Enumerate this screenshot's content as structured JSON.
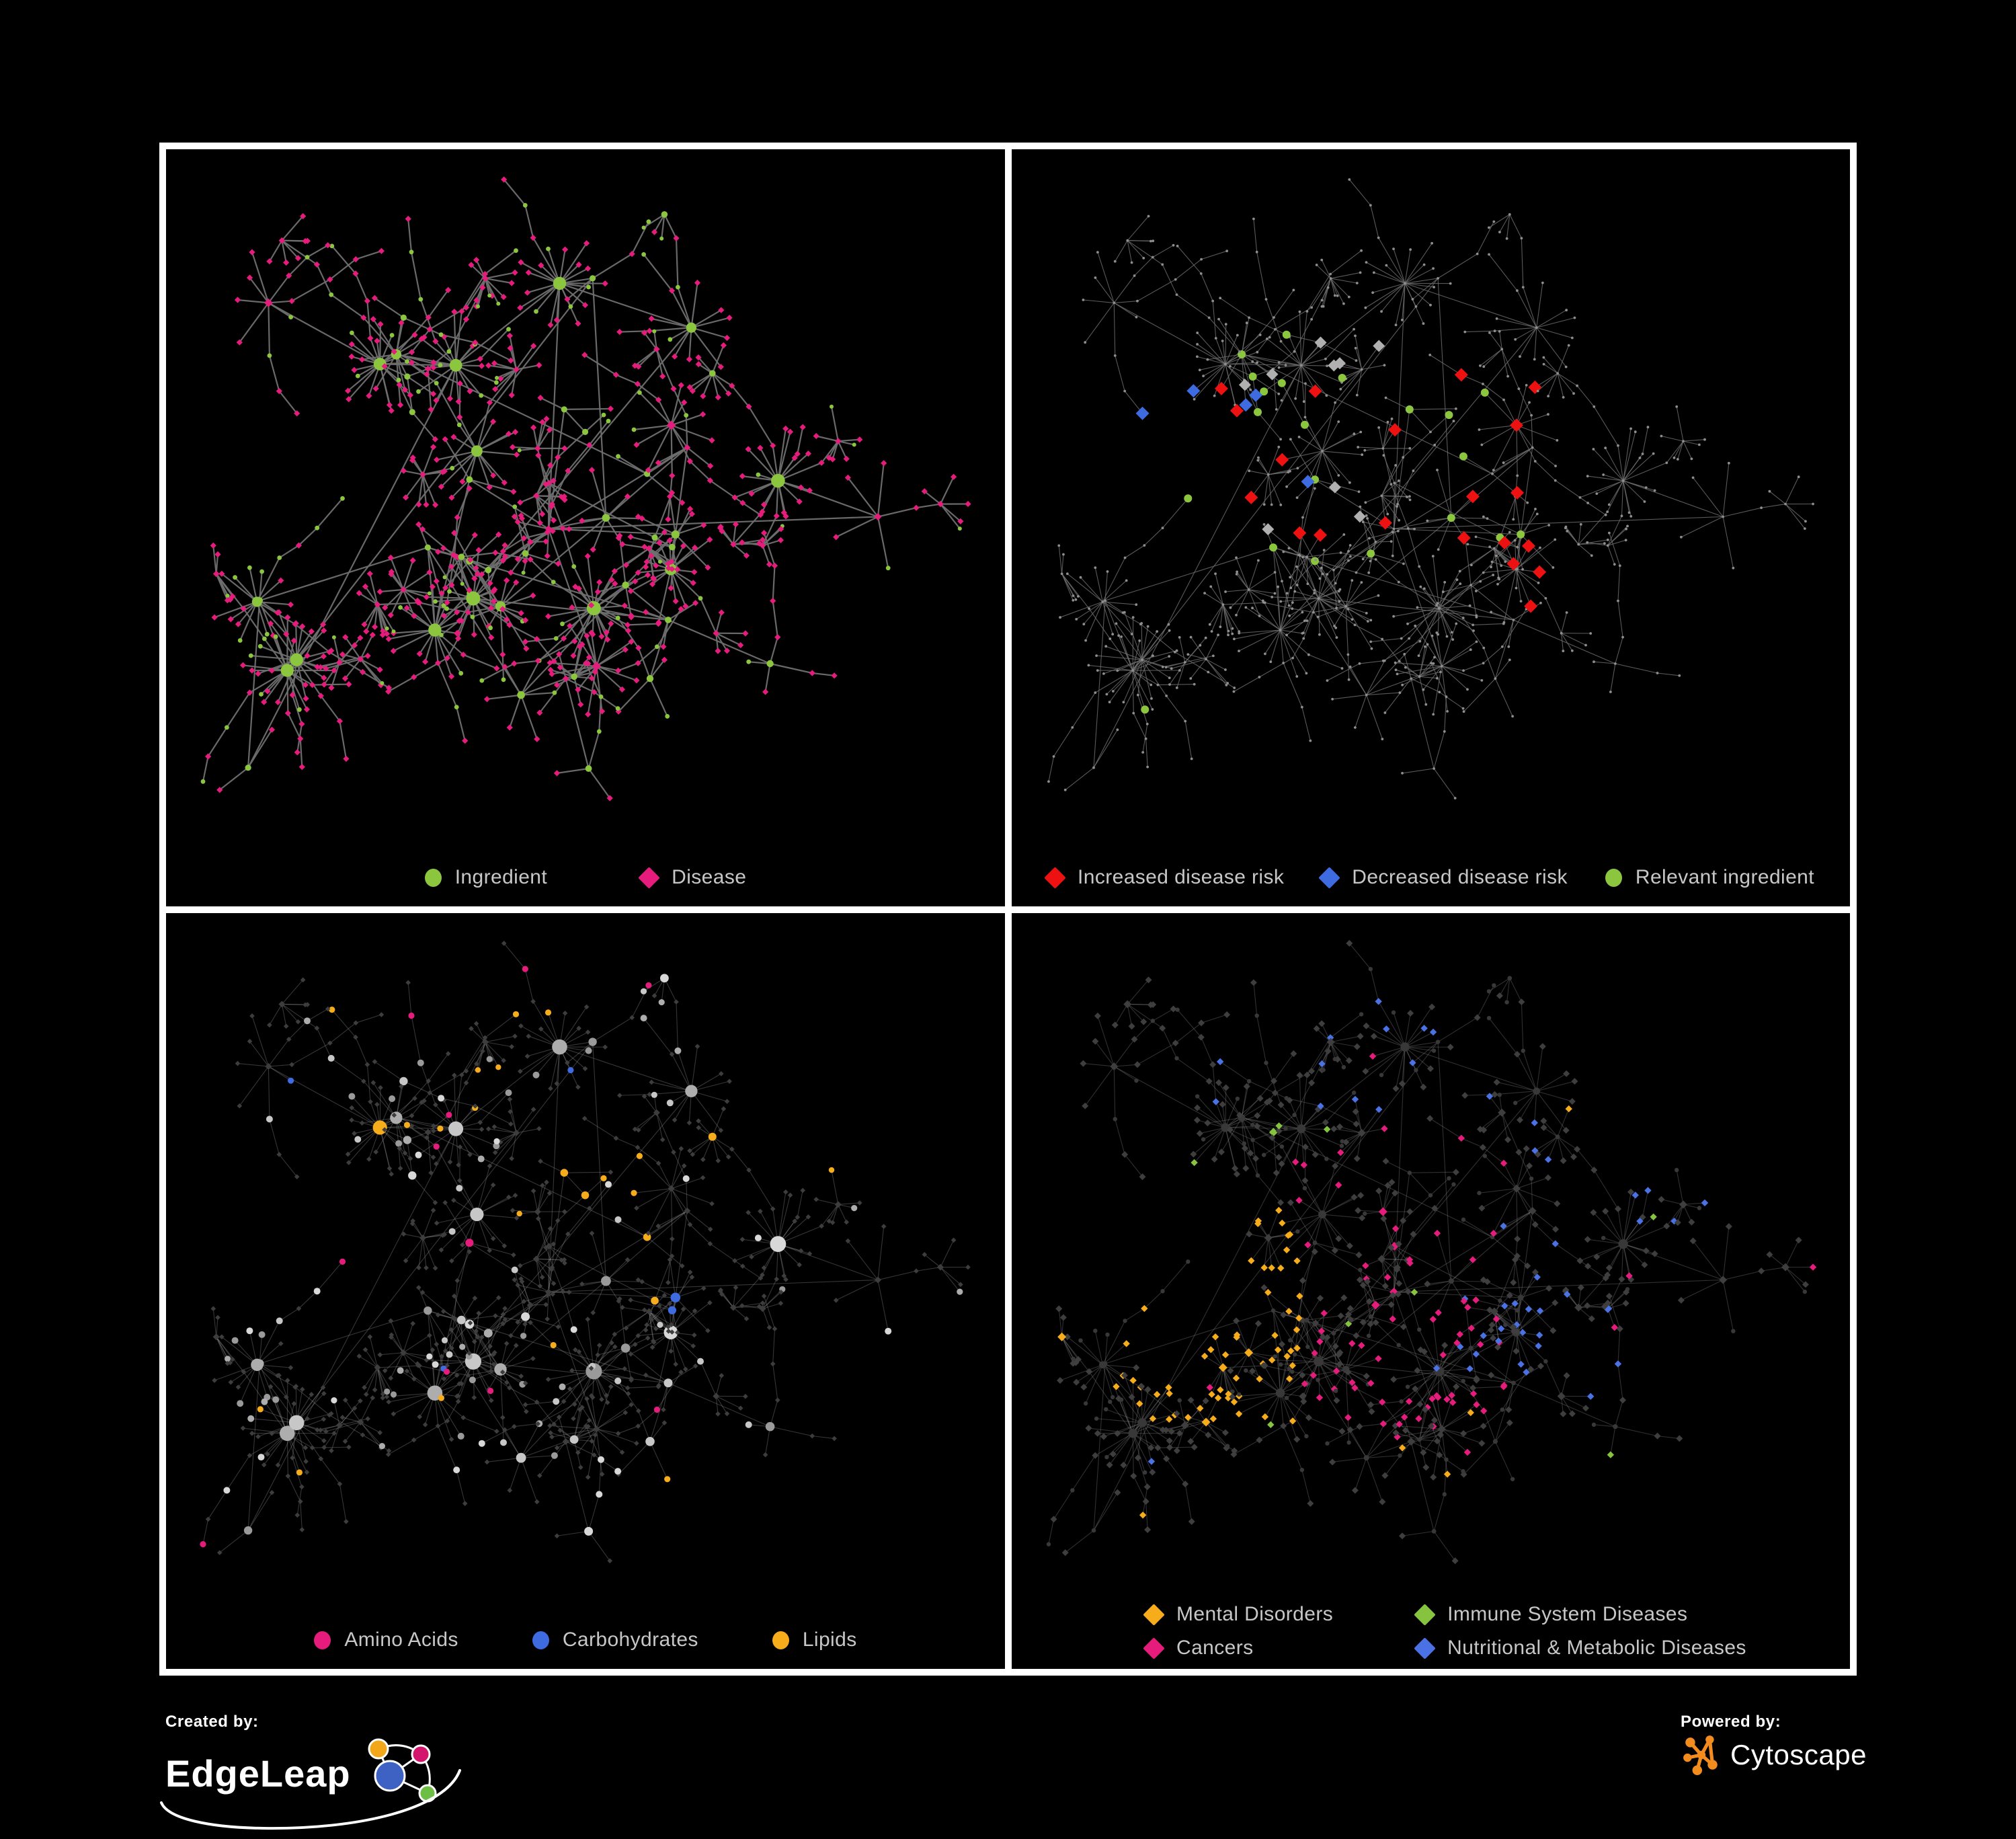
{
  "panels": [
    {
      "id": "ingredient-disease",
      "legend": [
        {
          "shape": "circle",
          "color": "#8CC63F",
          "label": "Ingredient"
        },
        {
          "shape": "diamond",
          "color": "#E61C7D",
          "label": "Disease"
        }
      ]
    },
    {
      "id": "disease-risk",
      "legend": [
        {
          "shape": "diamond",
          "color": "#EE1111",
          "label": "Increased disease risk"
        },
        {
          "shape": "diamond",
          "color": "#3F6BE0",
          "label": "Decreased disease risk"
        },
        {
          "shape": "circle",
          "color": "#8CC63F",
          "label": "Relevant ingredient"
        }
      ]
    },
    {
      "id": "ingredient-classes",
      "legend": [
        {
          "shape": "circle",
          "color": "#E61C7D",
          "label": "Amino Acids"
        },
        {
          "shape": "circle",
          "color": "#3F6BE0",
          "label": "Carbohydrates"
        },
        {
          "shape": "circle",
          "color": "#F7AC1B",
          "label": "Lipids"
        }
      ]
    },
    {
      "id": "disease-classes",
      "legend": [
        {
          "shape": "diamond",
          "color": "#F7AC1B",
          "label": "Mental Disorders"
        },
        {
          "shape": "diamond",
          "color": "#86C440",
          "label": "Immune System Diseases"
        },
        {
          "shape": "diamond",
          "color": "#E61C7D",
          "label": "Cancers"
        },
        {
          "shape": "diamond",
          "color": "#4A72E4",
          "label": "Nutritional & Metabolic Diseases"
        }
      ]
    }
  ],
  "footer": {
    "created_by": {
      "label": "Created by:",
      "brand": "EdgeLeap"
    },
    "powered_by": {
      "label": "Powered by:",
      "brand": "Cytoscape",
      "icon_color": "#F28C1E"
    },
    "edgeleap_logo_colors": {
      "blue": "#3E62C4",
      "orange": "#F2A71B",
      "magenta": "#D4156E",
      "green": "#6DBE45"
    }
  },
  "network": {
    "seed": 1337,
    "highlight_seeds": [
      101,
      202,
      303,
      404
    ],
    "hubs": 48,
    "extra_links": 15,
    "style": {
      "p1": {
        "edge": "#6F6F6F",
        "edge_w": 2.2,
        "edge_o": 0.95
      },
      "p2": {
        "edge": "#6F6F6F",
        "edge_w": 1.1,
        "edge_o": 0.8,
        "dim": "#8E8E8E",
        "gray_diamond": "#B0B0B0"
      },
      "p3": {
        "edge": "#A9A9A9",
        "edge_w": 1.1,
        "edge_o": 0.32,
        "ingredient_grays": [
          "#C7C7C7",
          "#ADADAD",
          "#9A9A9A",
          "#D8D8D8"
        ],
        "disease": "#3D3D3D"
      },
      "p4": {
        "edge": "#9F9F9F",
        "edge_w": 1.1,
        "edge_o": 0.3,
        "ingredient": "#383838",
        "disease": "#3E3E3E"
      }
    }
  }
}
